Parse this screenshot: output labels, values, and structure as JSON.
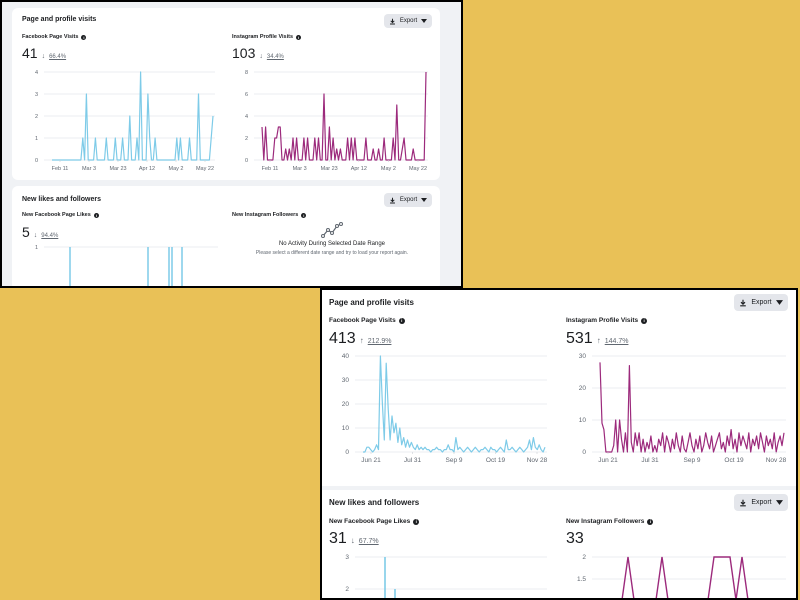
{
  "top": {
    "visits": {
      "title": "Page and profile visits",
      "export_label": "Export",
      "facebook": {
        "label": "Facebook Page Visits",
        "value": "41",
        "delta_arrow": "↓",
        "delta": "66.4%",
        "y_ticks": [
          "4",
          "3",
          "2",
          "1",
          "0"
        ],
        "x_ticks": [
          "Feb 11",
          "Mar 3",
          "Mar 23",
          "Apr 12",
          "May 2",
          "May 22"
        ],
        "color": "#7ecbe8"
      },
      "instagram": {
        "label": "Instagram Profile Visits",
        "value": "103",
        "delta_arrow": "↓",
        "delta": "34.4%",
        "y_ticks": [
          "8",
          "6",
          "4",
          "2",
          "0"
        ],
        "x_ticks": [
          "Feb 11",
          "Mar 3",
          "Mar 23",
          "Apr 12",
          "May 2",
          "May 22"
        ],
        "color": "#9c2a7c"
      }
    },
    "likes": {
      "title": "New likes and followers",
      "export_label": "Export",
      "facebook": {
        "label": "New Facebook Page Likes",
        "value": "5",
        "delta_arrow": "↓",
        "delta": "94.4%",
        "y_ticks": [
          "1"
        ]
      },
      "instagram": {
        "label": "New Instagram Followers",
        "empty_title": "No Activity During Selected Date Range",
        "empty_sub": "Please select a different date range and try to load your report again."
      }
    }
  },
  "bottom": {
    "visits": {
      "title": "Page and profile visits",
      "export_label": "Export",
      "facebook": {
        "label": "Facebook Page Visits",
        "value": "413",
        "delta_arrow": "↑",
        "delta": "212.9%",
        "y_ticks": [
          "40",
          "30",
          "20",
          "10",
          "0"
        ],
        "x_ticks": [
          "Jun 21",
          "Jul 31",
          "Sep 9",
          "Oct 19",
          "Nov 28"
        ]
      },
      "instagram": {
        "label": "Instagram Profile Visits",
        "value": "531",
        "delta_arrow": "↑",
        "delta": "144.7%",
        "y_ticks": [
          "30",
          "20",
          "10",
          "0"
        ],
        "x_ticks": [
          "Jun 21",
          "Jul 31",
          "Sep 9",
          "Oct 19",
          "Nov 28"
        ]
      }
    },
    "likes": {
      "title": "New likes and followers",
      "export_label": "Export",
      "facebook": {
        "label": "New Facebook Page Likes",
        "value": "31",
        "delta_arrow": "↓",
        "delta": "67.7%",
        "y_ticks": [
          "3",
          "2"
        ]
      },
      "instagram": {
        "label": "New Instagram Followers",
        "value": "33",
        "y_ticks": [
          "2",
          "1.5"
        ]
      }
    }
  },
  "chart_data": [
    {
      "type": "line",
      "xlabel": "",
      "ylabel": "",
      "x_ticks": [
        "Feb 11",
        "Mar 3",
        "Mar 23",
        "Apr 12",
        "May 2",
        "May 22"
      ],
      "ylim": [
        0,
        4
      ],
      "series": [
        {
          "values": [
            0,
            0,
            0,
            0,
            0,
            0,
            0,
            0,
            0,
            0,
            0,
            0,
            0,
            0,
            0,
            0,
            0,
            1,
            0,
            3,
            0,
            0,
            0,
            0,
            1,
            0,
            0,
            0,
            0,
            0,
            1,
            0,
            0,
            0,
            0,
            1,
            0,
            0,
            0,
            1,
            0,
            0,
            0,
            2,
            0,
            0,
            0,
            1,
            0,
            4,
            0,
            0,
            0,
            3,
            1,
            0,
            0,
            1,
            0,
            0,
            0,
            0,
            0,
            0,
            0,
            0,
            0,
            0,
            0,
            1,
            0,
            1,
            0,
            0,
            0,
            0,
            1,
            0,
            0,
            0,
            0,
            3,
            0,
            0,
            0,
            0,
            0,
            0,
            1,
            2
          ]
        }
      ]
    },
    {
      "type": "line",
      "xlabel": "",
      "ylabel": "",
      "x_ticks": [
        "Feb 11",
        "Mar 3",
        "Mar 23",
        "Apr 12",
        "May 2",
        "May 22"
      ],
      "ylim": [
        0,
        8
      ],
      "series": [
        {
          "values": [
            3,
            0,
            3,
            0,
            0,
            0,
            0,
            2,
            2,
            3,
            3,
            0,
            0,
            1,
            0,
            1,
            0,
            2,
            0,
            2,
            0,
            0,
            0,
            2,
            0,
            2,
            0,
            0,
            0,
            2,
            0,
            2,
            0,
            0,
            6,
            0,
            0,
            3,
            0,
            2,
            0,
            1,
            0,
            1,
            0,
            0,
            0,
            2,
            0,
            2,
            0,
            2,
            0,
            0,
            0,
            0,
            0,
            2,
            0,
            0,
            0,
            1,
            0,
            0,
            1,
            0,
            0,
            2,
            0,
            0,
            0,
            0,
            2,
            0,
            5,
            0,
            0,
            1,
            2,
            0,
            0,
            0,
            0,
            1,
            0,
            0,
            0,
            0,
            0,
            0,
            8
          ]
        }
      ]
    },
    {
      "type": "line",
      "xlabel": "",
      "ylabel": "",
      "x_ticks": [
        "Jun 21",
        "Jul 31",
        "Sep 9",
        "Oct 19",
        "Nov 28"
      ],
      "ylim": [
        0,
        40
      ],
      "series": [
        {
          "values": [
            0,
            0,
            2,
            2,
            1,
            0,
            1,
            3,
            1,
            40,
            20,
            5,
            37,
            18,
            5,
            15,
            8,
            12,
            4,
            10,
            3,
            6,
            2,
            5,
            2,
            4,
            2,
            1,
            3,
            1,
            2,
            1,
            2,
            1,
            1,
            0,
            1,
            1,
            2,
            1,
            1,
            0,
            1,
            1,
            3,
            1,
            1,
            0,
            6,
            1,
            2,
            1,
            0,
            1,
            2,
            1,
            0,
            1,
            2,
            1,
            0,
            1,
            1,
            2,
            1,
            0,
            2,
            1,
            1,
            0,
            1,
            2,
            1,
            0,
            5,
            1,
            1,
            2,
            1,
            0,
            1,
            2,
            1,
            0,
            1,
            2,
            5,
            1,
            6,
            2,
            1,
            3,
            1,
            0,
            2
          ]
        }
      ]
    },
    {
      "type": "line",
      "xlabel": "",
      "ylabel": "",
      "x_ticks": [
        "Jun 21",
        "Jul 31",
        "Sep 9",
        "Oct 19",
        "Nov 28"
      ],
      "ylim": [
        0,
        30
      ],
      "series": [
        {
          "values": [
            28,
            9,
            7,
            0,
            0,
            0,
            0,
            2,
            10,
            0,
            10,
            4,
            0,
            6,
            0,
            27,
            3,
            0,
            6,
            2,
            6,
            0,
            4,
            0,
            3,
            1,
            5,
            0,
            2,
            0,
            4,
            2,
            6,
            0,
            5,
            3,
            0,
            4,
            1,
            6,
            2,
            0,
            5,
            1,
            0,
            3,
            6,
            2,
            0,
            4,
            1,
            5,
            0,
            2,
            6,
            3,
            1,
            5,
            0,
            2,
            4,
            6,
            1,
            3,
            0,
            5,
            2,
            7,
            1,
            4,
            0,
            6,
            2,
            5,
            3,
            1,
            6,
            0,
            4,
            2,
            5,
            1,
            6,
            3,
            0,
            5,
            2,
            4,
            1,
            6,
            0,
            3,
            5,
            2,
            6
          ]
        }
      ]
    }
  ]
}
